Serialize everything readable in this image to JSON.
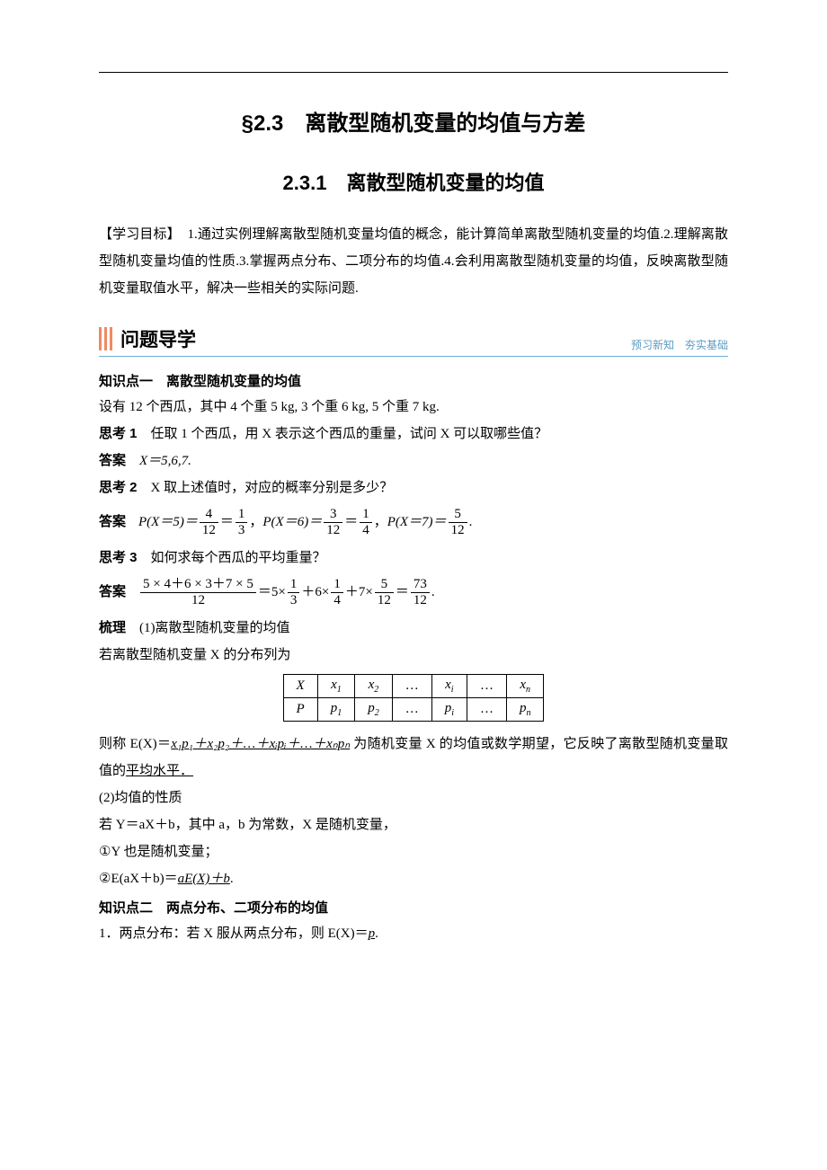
{
  "title_main": "§2.3　离散型随机变量的均值与方差",
  "title_sub": "2.3.1　离散型随机变量的均值",
  "objective": "【学习目标】　1.通过实例理解离散型随机变量均值的概念，能计算简单离散型随机变量的均值.2.理解离散型随机变量均值的性质.3.掌握两点分布、二项分布的均值.4.会利用离散型随机变量的均值，反映离散型随机变量取值水平，解决一些相关的实际问题.",
  "section_bar": {
    "title": "问题导学",
    "right": "预习新知　夯实基础"
  },
  "kp1_title": "知识点一　离散型随机变量的均值",
  "kp1_setup": "设有 12 个西瓜，其中 4 个重 5 kg, 3 个重 6 kg, 5 个重 7 kg.",
  "think1_label": "思考 1",
  "think1_text": "　任取 1 个西瓜，用 X 表示这个西瓜的重量，试问 X 可以取哪些值？",
  "ans_label": "答案",
  "ans1_text": "　X＝5,6,7.",
  "think2_label": "思考 2",
  "think2_text": "　X 取上述值时，对应的概率分别是多少？",
  "ans2": {
    "p5_num": "4",
    "p5_den": "12",
    "p5b_num": "1",
    "p5b_den": "3",
    "p6_num": "3",
    "p6_den": "12",
    "p6b_num": "1",
    "p6b_den": "4",
    "p7_num": "5",
    "p7_den": "12"
  },
  "think3_label": "思考 3",
  "think3_text": "　如何求每个西瓜的平均重量？",
  "ans3": {
    "big_num": "5 × 4＋6 × 3＋7 × 5",
    "big_den": "12",
    "f1_num": "1",
    "f1_den": "3",
    "f2_num": "1",
    "f2_den": "4",
    "f3_num": "5",
    "f3_den": "12",
    "res_num": "73",
    "res_den": "12"
  },
  "comb_label": "梳理",
  "comb1_text": "　(1)离散型随机变量的均值",
  "comb1_line2": "若离散型随机变量 X 的分布列为",
  "dist_table": {
    "row1": [
      "X",
      "x",
      "x",
      "…",
      "x",
      "…",
      "x"
    ],
    "row1_sub": [
      "",
      "1",
      "2",
      "",
      "i",
      "",
      "n"
    ],
    "row2": [
      "P",
      "p",
      "p",
      "…",
      "p",
      "…",
      "p"
    ],
    "row2_sub": [
      "",
      "1",
      "2",
      "",
      "i",
      "",
      "n"
    ]
  },
  "ex_def_pre": "则称 E(X)＝",
  "ex_def_formula": "x₁p₁＋x₂p₂＋…＋xᵢpᵢ＋…＋xₙpₙ",
  "ex_def_post1": " 为随机变量 X 的均值或数学期望，它反映了离散型随机变量取值的",
  "ex_def_post2": "平均水平．",
  "prop_head": "(2)均值的性质",
  "prop_line1": "若 Y＝aX＋b，其中 a，b 为常数，X 是随机变量，",
  "prop_line2": "①Y 也是随机变量；",
  "prop_line3_pre": "②E(aX＋b)＝",
  "prop_line3_formula": "aE(X)＋b",
  "prop_line3_post": ".",
  "kp2_title": "知识点二　两点分布、二项分布的均值",
  "kp2_line1_pre": "1．两点分布：若 X 服从两点分布，则 E(X)＝",
  "kp2_line1_formula": "p",
  "kp2_line1_post": "."
}
